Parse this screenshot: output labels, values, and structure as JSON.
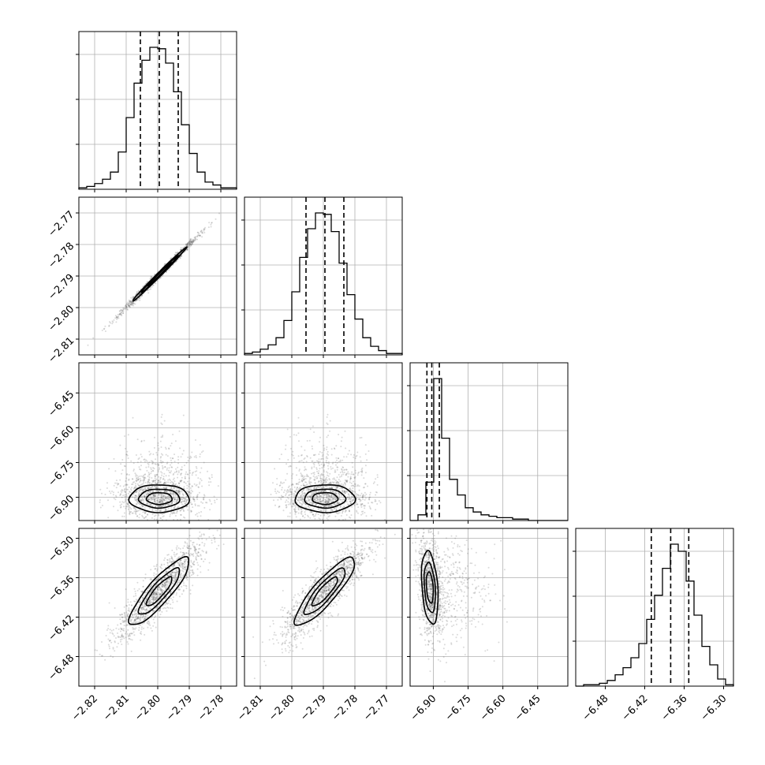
{
  "chart_data": {
    "type": "corner",
    "parameters": [
      {
        "range": [
          -2.825,
          -2.775
        ],
        "ticks": [
          -2.82,
          -2.81,
          -2.8,
          -2.79,
          -2.78
        ],
        "tick_labels": [
          "−2.82",
          "−2.81",
          "−2.80",
          "−2.79",
          "−2.78"
        ],
        "quantiles": [
          -2.8055,
          -2.7995,
          -2.7935
        ],
        "hist_counts": [
          1,
          2,
          4,
          7,
          12,
          26,
          50,
          74,
          90,
          99,
          98,
          88,
          68,
          45,
          25,
          12,
          5,
          3,
          1,
          1
        ]
      },
      {
        "range": [
          -2.815,
          -2.765
        ],
        "ticks": [
          -2.81,
          -2.8,
          -2.79,
          -2.78,
          -2.77
        ],
        "tick_labels": [
          "−2.81",
          "−2.80",
          "−2.79",
          "−2.78",
          "−2.77"
        ],
        "quantiles": [
          -2.7955,
          -2.7895,
          -2.7835
        ],
        "hist_counts": [
          1,
          2,
          4,
          7,
          12,
          24,
          44,
          68,
          88,
          99,
          98,
          86,
          64,
          42,
          25,
          12,
          6,
          3,
          1,
          1
        ]
      },
      {
        "range": [
          -7.0,
          -6.32
        ],
        "ticks": [
          -6.9,
          -6.75,
          -6.6,
          -6.45
        ],
        "tick_labels": [
          "−6.90",
          "−6.75",
          "−6.60",
          "−6.45"
        ],
        "quantiles": [
          -6.9275,
          -6.9065,
          -6.874
        ],
        "hist_counts": [
          0,
          4,
          27,
          100,
          58,
          29,
          18,
          9,
          6,
          4,
          3,
          2,
          2,
          1,
          1,
          0,
          0,
          0,
          0,
          0
        ]
      },
      {
        "range": [
          -6.525,
          -6.285
        ],
        "ticks": [
          -6.48,
          -6.42,
          -6.36,
          -6.3
        ],
        "tick_labels": [
          "−6.48",
          "−6.42",
          "−6.36",
          "−6.30"
        ],
        "quantiles": [
          -6.41,
          -6.3805,
          -6.353
        ],
        "hist_counts": [
          0,
          1,
          1,
          2,
          4,
          8,
          13,
          20,
          30,
          47,
          64,
          83,
          100,
          95,
          74,
          50,
          28,
          15,
          5,
          1
        ]
      }
    ],
    "pairs": [
      {
        "row": 1,
        "col": 0,
        "center": [
          -2.7995,
          -2.7895
        ],
        "sigma": [
          0.0043,
          0.0043
        ],
        "rho": 0.995,
        "grid_range": [
          -2.81,
          -2.79,
          -2.8,
          -2.775
        ]
      },
      {
        "row": 2,
        "col": 0,
        "center": [
          -2.7995,
          -6.905
        ],
        "sigma": [
          0.0048,
          0.03
        ],
        "rho": 0.0,
        "grid_range": [
          -2.815,
          -2.785,
          -6.95,
          -6.87
        ]
      },
      {
        "row": 2,
        "col": 1,
        "center": [
          -2.7895,
          -6.905
        ],
        "sigma": [
          0.0048,
          0.03
        ],
        "rho": 0.0,
        "grid_range": [
          -2.805,
          -2.775,
          -6.95,
          -6.87
        ]
      },
      {
        "row": 3,
        "col": 0,
        "center": [
          -2.7995,
          -6.381
        ],
        "sigma": [
          0.0048,
          0.026
        ],
        "rho": 0.87,
        "grid_range": [
          -2.815,
          -2.785,
          -6.43,
          -6.32
        ]
      },
      {
        "row": 3,
        "col": 1,
        "center": [
          -2.7895,
          -6.381
        ],
        "sigma": [
          0.0048,
          0.026
        ],
        "rho": 0.87,
        "grid_range": [
          -2.805,
          -2.775,
          -6.43,
          -6.32
        ]
      },
      {
        "row": 3,
        "col": 2,
        "center": [
          -6.915,
          -6.375
        ],
        "sigma": [
          0.018,
          0.028
        ],
        "rho": -0.3,
        "grid_range": [
          -6.96,
          -6.87,
          -6.43,
          -6.32
        ]
      }
    ]
  }
}
